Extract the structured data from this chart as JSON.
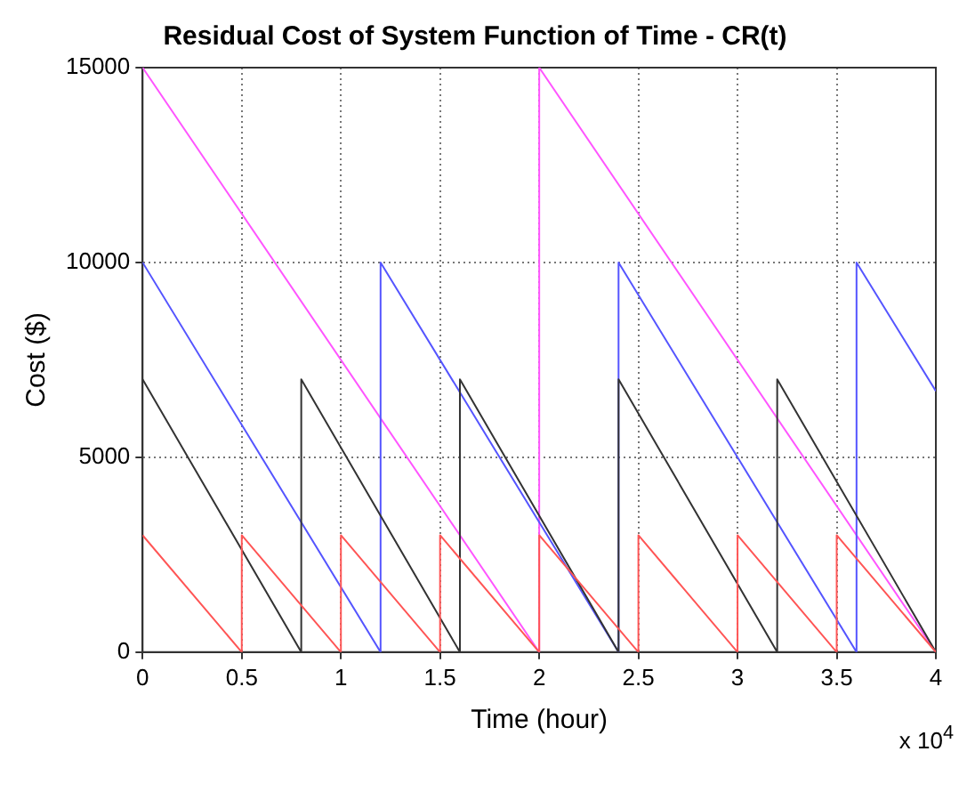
{
  "chart_data": {
    "type": "line",
    "title": "Residual Cost of System Function of Time - CR(t)",
    "xlabel": "Time (hour)",
    "ylabel": "Cost ($)",
    "xlim": [
      0,
      4
    ],
    "ylim": [
      0,
      15000
    ],
    "xticks": [
      0,
      0.5,
      1,
      1.5,
      2,
      2.5,
      3,
      3.5,
      4
    ],
    "yticks": [
      0,
      5000,
      10000,
      15000
    ],
    "grid": true,
    "line_style": "solid",
    "marker": "none",
    "legend": false,
    "annotations": [
      "x 10$^{4}$"
    ],
    "series": [
      {
        "color": "#ff5555",
        "x": [
          0,
          0.5,
          0.5,
          1,
          1,
          1.5,
          1.5,
          2,
          2,
          2.5,
          2.5,
          3,
          3,
          3.5,
          3.5,
          4
        ],
        "values": [
          3000,
          0,
          3000,
          0,
          3000,
          0,
          3000,
          0,
          3000,
          0,
          3000,
          0,
          3000,
          0,
          3000,
          0
        ]
      },
      {
        "color": "#333333",
        "x": [
          0,
          0.8,
          0.8,
          1.6,
          1.6,
          2.4,
          2.4,
          3.2,
          3.2,
          4
        ],
        "values": [
          7000,
          0,
          7000,
          0,
          7000,
          0,
          7000,
          0,
          7000,
          0
        ]
      },
      {
        "color": "#5555ff",
        "x": [
          0,
          1.2,
          1.2,
          2.4,
          2.4,
          3.6,
          3.6,
          4
        ],
        "values": [
          10000,
          0,
          10000,
          0,
          10000,
          0,
          10000,
          6700
        ]
      },
      {
        "color": "#ff55ff",
        "x": [
          0,
          2,
          2,
          4
        ],
        "values": [
          15000,
          0,
          15000,
          0
        ]
      }
    ]
  }
}
